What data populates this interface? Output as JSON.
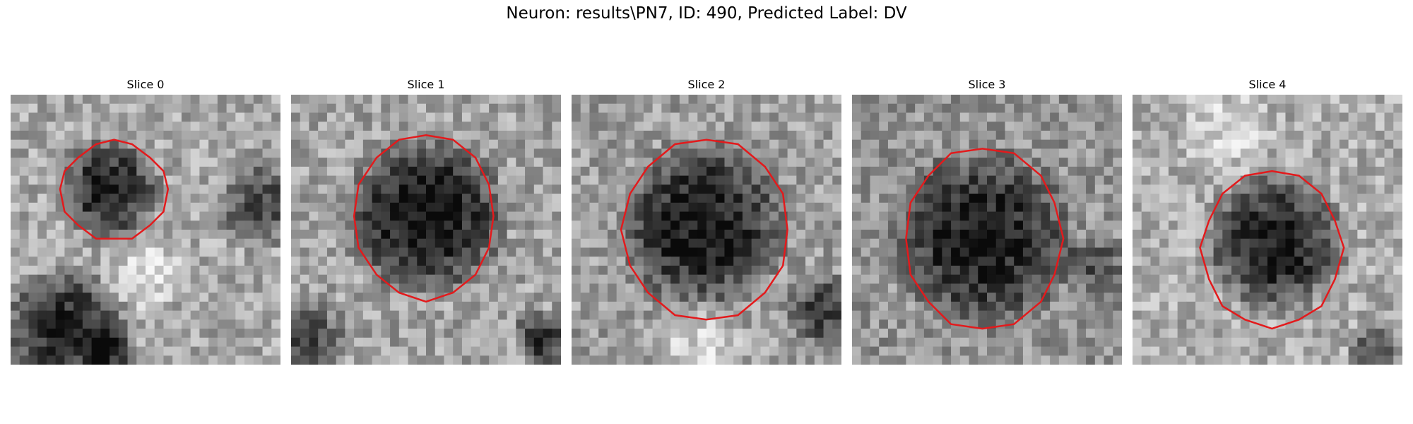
{
  "figure": {
    "title": "Neuron: results\\PN7, ID: 490, Predicted Label: DV"
  },
  "slices": [
    {
      "title": "Slice 0"
    },
    {
      "title": "Slice 1"
    },
    {
      "title": "Slice 2"
    },
    {
      "title": "Slice 3"
    },
    {
      "title": "Slice 4"
    }
  ],
  "colors": {
    "contour": "#e31a1c",
    "background": "#ffffff"
  }
}
